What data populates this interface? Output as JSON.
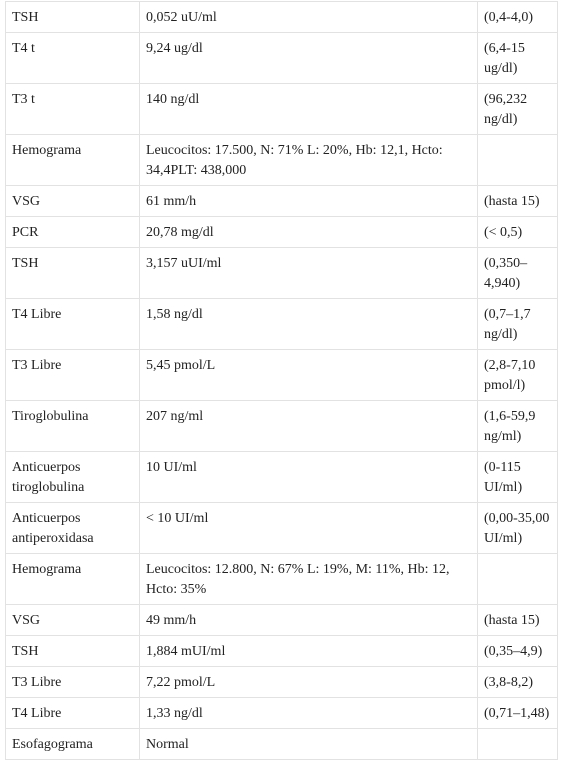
{
  "table": {
    "rows": [
      [
        "TSH",
        "0,052 uU/ml",
        "(0,4-4,0)"
      ],
      [
        "T4 t",
        "9,24 ug/dl",
        "(6,4-15 ug/dl)"
      ],
      [
        "T3 t",
        "140 ng/dl",
        "(96,232 ng/dl)"
      ],
      [
        "Hemograma",
        "Leucocitos: 17.500, N: 71% L: 20%, Hb: 12,1, Hcto: 34,4PLT: 438,000"
      ],
      [
        "VSG",
        "61 mm/h",
        "(hasta 15)"
      ],
      [
        "PCR",
        "20,78 mg/dl",
        "(< 0,5)"
      ],
      [
        "TSH",
        "3,157 uUI/ml",
        "(0,350–4,940)"
      ],
      [
        "T4 Libre",
        "1,58 ng/dl",
        "(0,7–1,7 ng/dl)"
      ],
      [
        "T3 Libre",
        "5,45 pmol/L",
        "(2,8-7,10 pmol/l)"
      ],
      [
        "Tiroglobulina",
        "207 ng/ml",
        "(1,6-59,9 ng/ml)"
      ],
      [
        "Anticuerpos tiroglobulina",
        "10 UI/ml",
        "(0-115 UI/ml)"
      ],
      [
        "Anticuerpos antiperoxidasa",
        "< 10 UI/ml",
        "(0,00-35,00 UI/ml)"
      ],
      [
        "Hemograma",
        "Leucocitos: 12.800, N: 67% L: 19%, M: 11%, Hb: 12, Hcto: 35%"
      ],
      [
        "VSG",
        "49 mm/h",
        "(hasta 15)"
      ],
      [
        "TSH",
        "1,884 mUI/ml",
        "(0,35–4,9)"
      ],
      [
        "T3 Libre",
        "7,22 pmol/L",
        "(3,8-8,2)"
      ],
      [
        "T4 Libre",
        "1,33 ng/dl",
        "(0,71–1,48)"
      ],
      [
        "Esofagograma",
        "Normal"
      ]
    ]
  }
}
